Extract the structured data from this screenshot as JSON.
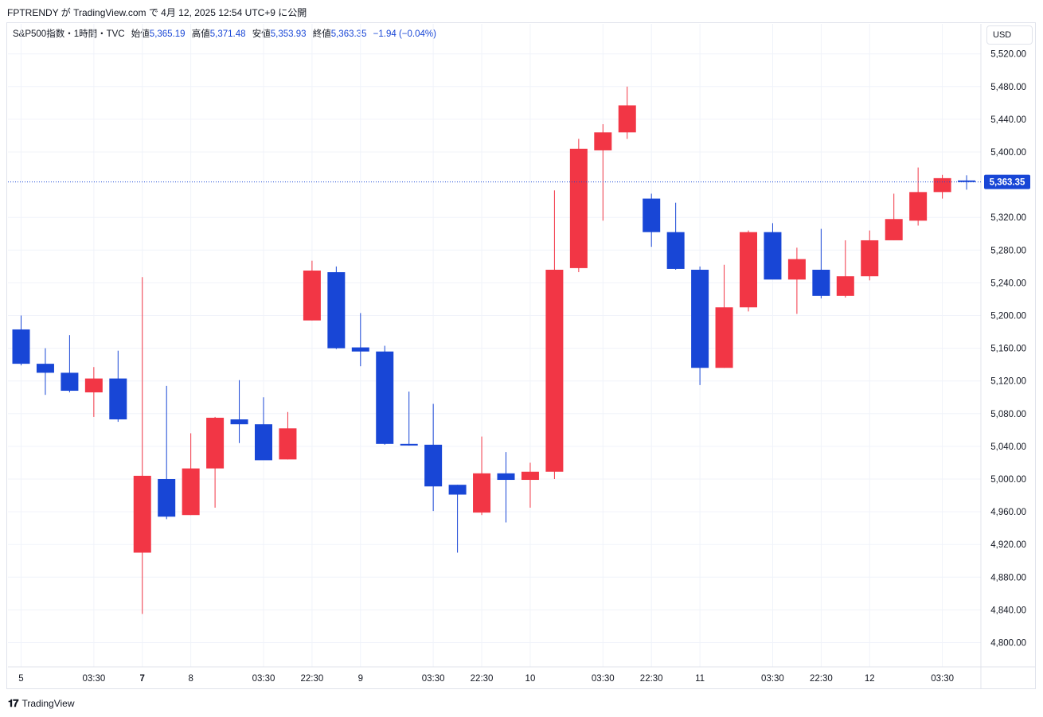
{
  "caption": "FPTRENDY が TradingView.com で 4月 12, 2025 12:54 UTC+9 に公開",
  "legend": {
    "symbol": "S&P500指数・1時間・TVC",
    "open_label": "始値",
    "open": "5,365.19",
    "high_label": "高値",
    "high": "5,371.48",
    "low_label": "安値",
    "low": "5,353.93",
    "close_label": "終値",
    "close": "5,363.35",
    "change": "−1.94 (−0.04%)"
  },
  "currency": "USD",
  "footer_brand": "TradingView",
  "colors": {
    "up": "#f23645",
    "down": "#1846d6",
    "grid": "#f0f3fa",
    "axis_text": "#131722",
    "price_tag_bg": "#1846d6"
  },
  "chart_data": {
    "type": "candlestick",
    "ylim": [
      4780,
      5540
    ],
    "yticks": [
      "4,800.00",
      "4,840.00",
      "4,880.00",
      "4,920.00",
      "4,960.00",
      "5,000.00",
      "5,040.00",
      "5,080.00",
      "5,120.00",
      "5,160.00",
      "5,200.00",
      "5,240.00",
      "5,280.00",
      "5,320.00",
      "5,400.00",
      "5,440.00",
      "5,480.00",
      "5,520.00"
    ],
    "ytick_values": [
      4800,
      4840,
      4880,
      4920,
      4960,
      5000,
      5040,
      5080,
      5120,
      5160,
      5200,
      5240,
      5280,
      5320,
      5400,
      5440,
      5480,
      5520
    ],
    "xticks": [
      {
        "label": "5",
        "index": 0,
        "bold": false
      },
      {
        "label": "03:30",
        "index": 3,
        "bold": false
      },
      {
        "label": "7",
        "index": 5,
        "bold": true
      },
      {
        "label": "8",
        "index": 7,
        "bold": false
      },
      {
        "label": "03:30",
        "index": 10,
        "bold": false
      },
      {
        "label": "22:30",
        "index": 12,
        "bold": false
      },
      {
        "label": "9",
        "index": 14,
        "bold": false
      },
      {
        "label": "03:30",
        "index": 17,
        "bold": false
      },
      {
        "label": "22:30",
        "index": 19,
        "bold": false
      },
      {
        "label": "10",
        "index": 21,
        "bold": false
      },
      {
        "label": "03:30",
        "index": 24,
        "bold": false
      },
      {
        "label": "22:30",
        "index": 26,
        "bold": false
      },
      {
        "label": "11",
        "index": 28,
        "bold": false
      },
      {
        "label": "03:30",
        "index": 31,
        "bold": false
      },
      {
        "label": "22:30",
        "index": 33,
        "bold": false
      },
      {
        "label": "12",
        "index": 35,
        "bold": false
      },
      {
        "label": "03:30",
        "index": 38,
        "bold": false
      }
    ],
    "last_price": 5363.35,
    "last_price_label": "5,363.35",
    "candles": [
      {
        "o": 5183,
        "h": 5200,
        "l": 5139,
        "c": 5141
      },
      {
        "o": 5141,
        "h": 5160,
        "l": 5103,
        "c": 5130
      },
      {
        "o": 5130,
        "h": 5176,
        "l": 5106,
        "c": 5108
      },
      {
        "o": 5106,
        "h": 5137,
        "l": 5076,
        "c": 5123
      },
      {
        "o": 5123,
        "h": 5157,
        "l": 5070,
        "c": 5073
      },
      {
        "o": 4910,
        "h": 5247,
        "l": 4835,
        "c": 5004
      },
      {
        "o": 5000,
        "h": 5114,
        "l": 4951,
        "c": 4954
      },
      {
        "o": 4956,
        "h": 5056,
        "l": 4956,
        "c": 5013
      },
      {
        "o": 5013,
        "h": 5076,
        "l": 4965,
        "c": 5075
      },
      {
        "o": 5073,
        "h": 5121,
        "l": 5044,
        "c": 5067
      },
      {
        "o": 5067,
        "h": 5100,
        "l": 5024,
        "c": 5023
      },
      {
        "o": 5024,
        "h": 5082,
        "l": 5024,
        "c": 5062
      },
      {
        "o": 5194,
        "h": 5267,
        "l": 5194,
        "c": 5255
      },
      {
        "o": 5253,
        "h": 5260,
        "l": 5159,
        "c": 5160
      },
      {
        "o": 5161,
        "h": 5203,
        "l": 5138,
        "c": 5156
      },
      {
        "o": 5156,
        "h": 5163,
        "l": 5042,
        "c": 5043
      },
      {
        "o": 5043,
        "h": 5107,
        "l": 5041,
        "c": 5042
      },
      {
        "o": 5042,
        "h": 5092,
        "l": 4961,
        "c": 4991
      },
      {
        "o": 4993,
        "h": 4993,
        "l": 4910,
        "c": 4981
      },
      {
        "o": 4959,
        "h": 5052,
        "l": 4956,
        "c": 5007
      },
      {
        "o": 5007,
        "h": 5033,
        "l": 4947,
        "c": 4999
      },
      {
        "o": 4999,
        "h": 5020,
        "l": 4965,
        "c": 5009
      },
      {
        "o": 5009,
        "h": 5353,
        "l": 5000,
        "c": 5256
      },
      {
        "o": 5258,
        "h": 5416,
        "l": 5253,
        "c": 5404
      },
      {
        "o": 5402,
        "h": 5434,
        "l": 5316,
        "c": 5424
      },
      {
        "o": 5424,
        "h": 5480,
        "l": 5416,
        "c": 5457
      },
      {
        "o": 5343,
        "h": 5349,
        "l": 5284,
        "c": 5302
      },
      {
        "o": 5302,
        "h": 5338,
        "l": 5256,
        "c": 5257
      },
      {
        "o": 5256,
        "h": 5260,
        "l": 5115,
        "c": 5136
      },
      {
        "o": 5136,
        "h": 5262,
        "l": 5136,
        "c": 5210
      },
      {
        "o": 5210,
        "h": 5304,
        "l": 5205,
        "c": 5302
      },
      {
        "o": 5302,
        "h": 5313,
        "l": 5245,
        "c": 5244
      },
      {
        "o": 5244,
        "h": 5283,
        "l": 5202,
        "c": 5269
      },
      {
        "o": 5256,
        "h": 5306,
        "l": 5221,
        "c": 5224
      },
      {
        "o": 5224,
        "h": 5292,
        "l": 5222,
        "c": 5248
      },
      {
        "o": 5248,
        "h": 5304,
        "l": 5243,
        "c": 5292
      },
      {
        "o": 5292,
        "h": 5349,
        "l": 5292,
        "c": 5318
      },
      {
        "o": 5316,
        "h": 5381,
        "l": 5310,
        "c": 5351
      },
      {
        "o": 5351,
        "h": 5372,
        "l": 5343,
        "c": 5368
      },
      {
        "o": 5365.19,
        "h": 5371.48,
        "l": 5353.93,
        "c": 5363.35
      }
    ]
  }
}
